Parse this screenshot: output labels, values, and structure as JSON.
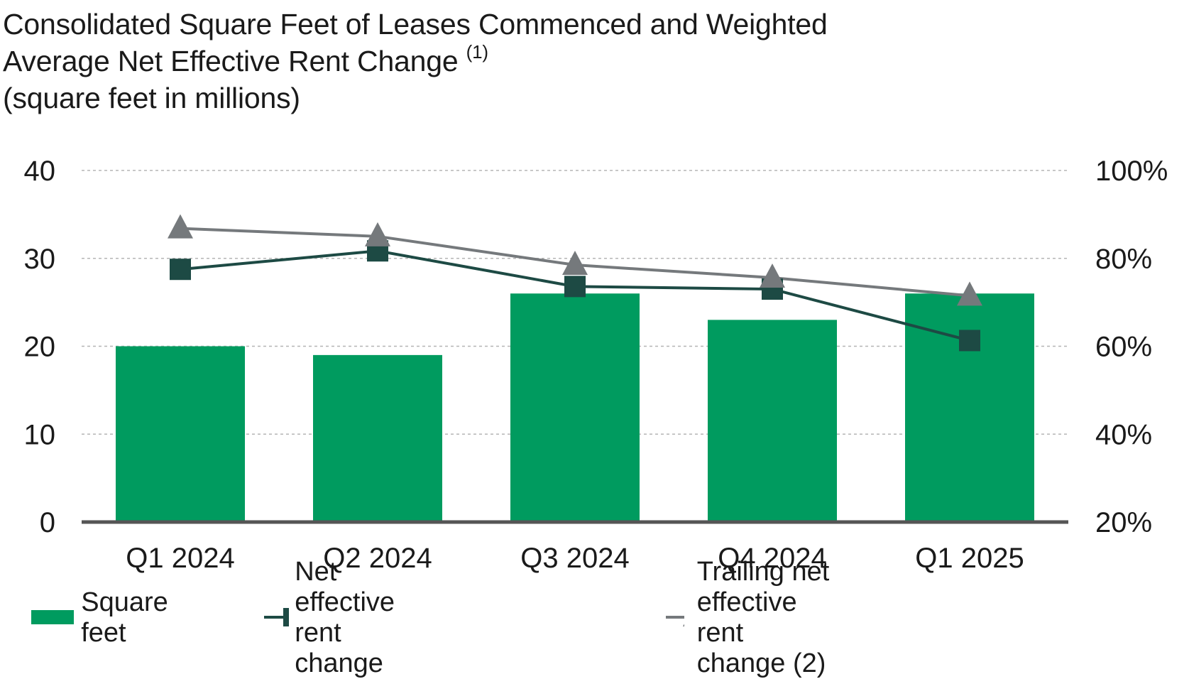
{
  "title": {
    "line1": "Consolidated Square Feet of Leases Commenced and Weighted",
    "line2": "Average Net Effective Rent Change",
    "footnote": "(1)",
    "line3": "(square feet in millions)"
  },
  "colors": {
    "bar": "#009b5f",
    "net_line": "#1d4a44",
    "trailing_line": "#75797c",
    "grid": "#b5b5b5",
    "axis": "#555555"
  },
  "chart_data": {
    "type": "bar",
    "title": "Consolidated Square Feet of Leases Commenced and Weighted Average Net Effective Rent Change (1) (square feet in millions)",
    "categories": [
      "Q1 2024",
      "Q2 2024",
      "Q3 2024",
      "Q4 2024",
      "Q1 2025"
    ],
    "series": [
      {
        "name": "Square feet",
        "type": "bar",
        "axis": "left",
        "values": [
          20,
          19,
          26,
          23,
          26
        ]
      },
      {
        "name": "Net effective rent change",
        "type": "line",
        "marker": "square",
        "axis": "right",
        "values": [
          77.5,
          81.7,
          73.6,
          73.0,
          61.3
        ]
      },
      {
        "name": "Trailing net effective rent change (2)",
        "type": "line",
        "marker": "triangle",
        "axis": "right",
        "values": [
          86.8,
          85.0,
          78.5,
          75.6,
          71.5
        ]
      }
    ],
    "y_left": {
      "min": 0,
      "max": 40,
      "ticks": [
        0,
        10,
        20,
        30,
        40
      ],
      "tick_labels": [
        "0",
        "10",
        "20",
        "30",
        "40"
      ]
    },
    "y_right": {
      "min": 20,
      "max": 100,
      "ticks": [
        20,
        40,
        60,
        80,
        100
      ],
      "tick_labels": [
        "20%",
        "40%",
        "60%",
        "80%",
        "100%"
      ]
    },
    "grid": true,
    "legend_position": "bottom"
  }
}
